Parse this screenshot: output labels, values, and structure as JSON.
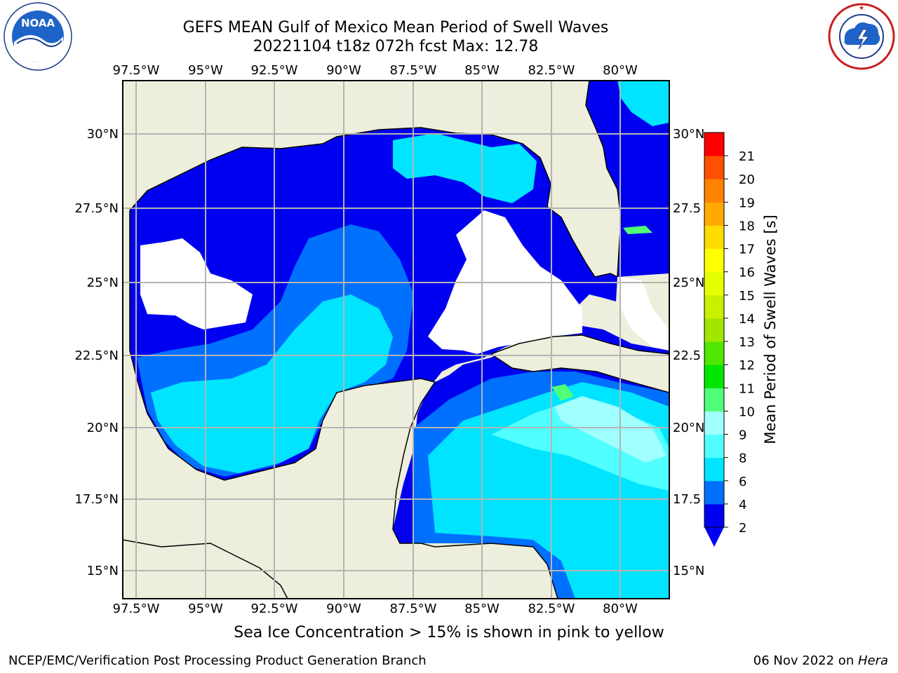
{
  "header": {
    "title_line1": "GEFS MEAN Gulf of Mexico Mean Period of Swell Waves",
    "title_line2": "20221104 t18z 072h fcst   Max: 12.78"
  },
  "logos": {
    "noaa": {
      "text": "NOAA",
      "ring_text": "NATIONAL OCEANIC AND ATMOSPHERIC ADMINISTRATION · U.S. DEPARTMENT OF COMMERCE"
    },
    "nws": {
      "ring_text": "NATIONAL WEATHER SERVICE"
    }
  },
  "map": {
    "lon_labels": [
      "97.5°W",
      "95°W",
      "92.5°W",
      "90°W",
      "87.5°W",
      "85°W",
      "82.5°W",
      "80°W"
    ],
    "lat_labels_left": [
      "30°N",
      "27.5°N",
      "25°N",
      "22.5°N",
      "20°N",
      "17.5°N",
      "15°N"
    ],
    "lat_labels_right": [
      "30°N",
      "27.5",
      "25°N",
      "22.5",
      "20°N",
      "17.5",
      "15°N"
    ],
    "colors": {
      "land": "#eeeedc",
      "coastline": "#000000",
      "grid": "#b4b4b4",
      "no_data": "#ffffff"
    }
  },
  "colorbar": {
    "label": "Mean Period of Swell Waves [s]",
    "ticks": [
      "2",
      "4",
      "6",
      "8",
      "9",
      "10",
      "11",
      "12",
      "13",
      "14",
      "15",
      "16",
      "17",
      "18",
      "19",
      "20",
      "21"
    ],
    "colors": [
      "#0000f0",
      "#0070ff",
      "#00e4ff",
      "#50ffff",
      "#a0ffff",
      "#50ff78",
      "#00e600",
      "#50e600",
      "#a0e600",
      "#c8f000",
      "#e6ff00",
      "#ffff00",
      "#ffdc00",
      "#ffaa00",
      "#ff8200",
      "#ff5000",
      "#ff0000"
    ],
    "extend_color": "#0000f0"
  },
  "footer": {
    "ice_note": "Sea Ice Concentration > 15% is shown in pink to yellow",
    "branch": "NCEP/EMC/Verification Post Processing Product Generation Branch",
    "date": "06 Nov 2022 on ",
    "machine": "Hera"
  }
}
